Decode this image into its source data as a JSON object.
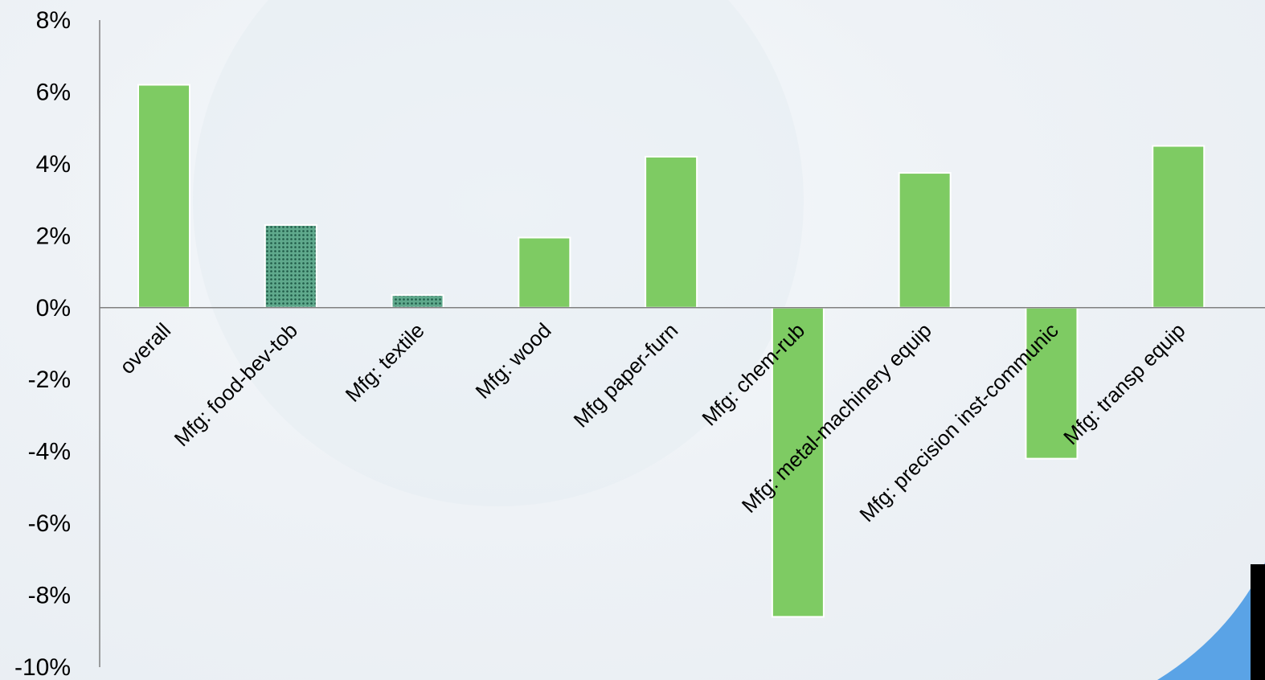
{
  "chart_data": {
    "type": "bar",
    "title": "",
    "xlabel": "",
    "ylabel": "",
    "ylim": [
      -10,
      8
    ],
    "yticks": [
      "8%",
      "6%",
      "4%",
      "2%",
      "0%",
      "-2%",
      "-4%",
      "-6%",
      "-8%",
      "-10%"
    ],
    "ytick_values": [
      8,
      6,
      4,
      2,
      0,
      -2,
      -4,
      -6,
      -8,
      -10
    ],
    "grid": false,
    "legend": "none",
    "categories": [
      "overall",
      "Mfg: food-bev-tob",
      "Mfg: textile",
      "Mfg: wood",
      "Mfg paper-furn",
      "Mfg: chem-rub",
      "Mfg: metal-machinery equip",
      "Mfg: precision inst-communic",
      "Mfg: transp equip"
    ],
    "values": [
      6.2,
      2.3,
      0.35,
      1.95,
      4.2,
      -8.6,
      3.75,
      -4.2,
      4.5
    ],
    "bar_styles": [
      "solid",
      "dotted",
      "dotted",
      "solid",
      "solid",
      "solid",
      "solid",
      "solid",
      "solid"
    ],
    "colors": {
      "bar": "#7ecb63",
      "pattern_bg": "#5fa98c",
      "pattern_dot": "#1f5a47",
      "axis": "#808080"
    }
  }
}
